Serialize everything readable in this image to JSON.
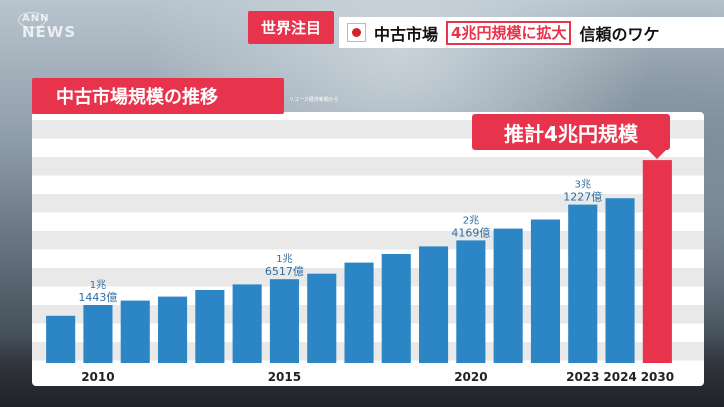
{
  "broadcaster": {
    "logo_top": "ANN",
    "logo_bottom": "NEWS"
  },
  "caption": {
    "tag": "世界注目",
    "flag_icon": "japan-flag-icon",
    "part1": "中古市場",
    "part2": "4兆円規模に拡大",
    "part3": "信頼のワケ"
  },
  "section_title": "中古市場規模の推移",
  "source_note": "リユース経済新聞から",
  "estimate_label": "推計4兆円規模",
  "colors": {
    "accent_red": "#e7334b",
    "bar_blue": "#2c86c6",
    "label_blue": "#2b6ea6",
    "stripe_gray": "#e9e9e9"
  },
  "chart_data": {
    "type": "bar",
    "title": "中古市場規模の推移",
    "xlabel": "",
    "ylabel": "",
    "unit_note": "億円",
    "categories": [
      "2009",
      "2010",
      "2011",
      "2012",
      "2013",
      "2014",
      "2015",
      "2016",
      "2017",
      "2018",
      "2019",
      "2020",
      "2021",
      "2022",
      "2023",
      "2024",
      "2030"
    ],
    "x_tick_labels": [
      {
        "category": "2010",
        "label": "2010"
      },
      {
        "category": "2015",
        "label": "2015"
      },
      {
        "category": "2020",
        "label": "2020"
      },
      {
        "category": "2023",
        "label": "2023"
      },
      {
        "category": "2024",
        "label": "2024"
      },
      {
        "category": "2030",
        "label": "2030"
      }
    ],
    "values": [
      9300,
      11443,
      12300,
      13100,
      14400,
      15500,
      16517,
      17600,
      19800,
      21500,
      23000,
      24169,
      26500,
      28300,
      31227,
      32500,
      40000
    ],
    "highlight_category": "2030",
    "data_labels": [
      {
        "category": "2010",
        "line1": "1兆",
        "line2": "1443億"
      },
      {
        "category": "2015",
        "line1": "1兆",
        "line2": "6517億"
      },
      {
        "category": "2020",
        "line1": "2兆",
        "line2": "4169億"
      },
      {
        "category": "2023",
        "line1": "3兆",
        "line2": "1227億"
      }
    ],
    "ylim": [
      0,
      42000
    ],
    "grid": "horizontal-bands",
    "legend": "none"
  }
}
